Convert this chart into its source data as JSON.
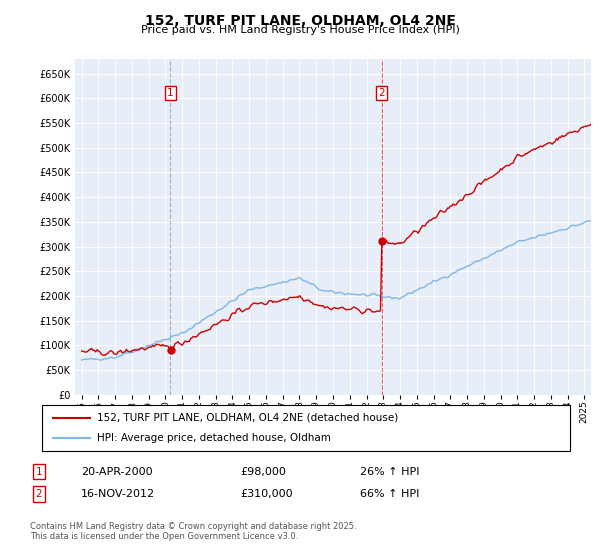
{
  "title": "152, TURF PIT LANE, OLDHAM, OL4 2NE",
  "subtitle": "Price paid vs. HM Land Registry's House Price Index (HPI)",
  "legend_line1": "152, TURF PIT LANE, OLDHAM, OL4 2NE (detached house)",
  "legend_line2": "HPI: Average price, detached house, Oldham",
  "footnote": "Contains HM Land Registry data © Crown copyright and database right 2025.\nThis data is licensed under the Open Government Licence v3.0.",
  "ann1_label": "1",
  "ann1_date": "20-APR-2000",
  "ann1_price": "£98,000",
  "ann1_pct": "26% ↑ HPI",
  "ann1_x": 2000.3,
  "ann2_label": "2",
  "ann2_date": "16-NOV-2012",
  "ann2_price": "£310,000",
  "ann2_pct": "66% ↑ HPI",
  "ann2_x": 2012.9,
  "ylim": [
    0,
    680000
  ],
  "xlim_start": 1994.6,
  "xlim_end": 2025.4,
  "red_color": "#CC0000",
  "blue_color": "#7EB6E8",
  "plot_bg": "#E8EEF8",
  "vline1_color": "#AAAACC",
  "vline2_color": "#CC8888",
  "yticks": [
    0,
    50000,
    100000,
    150000,
    200000,
    250000,
    300000,
    350000,
    400000,
    450000,
    500000,
    550000,
    600000,
    650000
  ],
  "xticks": [
    1995,
    1996,
    1997,
    1998,
    1999,
    2000,
    2001,
    2002,
    2003,
    2004,
    2005,
    2006,
    2007,
    2008,
    2009,
    2010,
    2011,
    2012,
    2013,
    2014,
    2015,
    2016,
    2017,
    2018,
    2019,
    2020,
    2021,
    2022,
    2023,
    2024,
    2025
  ]
}
